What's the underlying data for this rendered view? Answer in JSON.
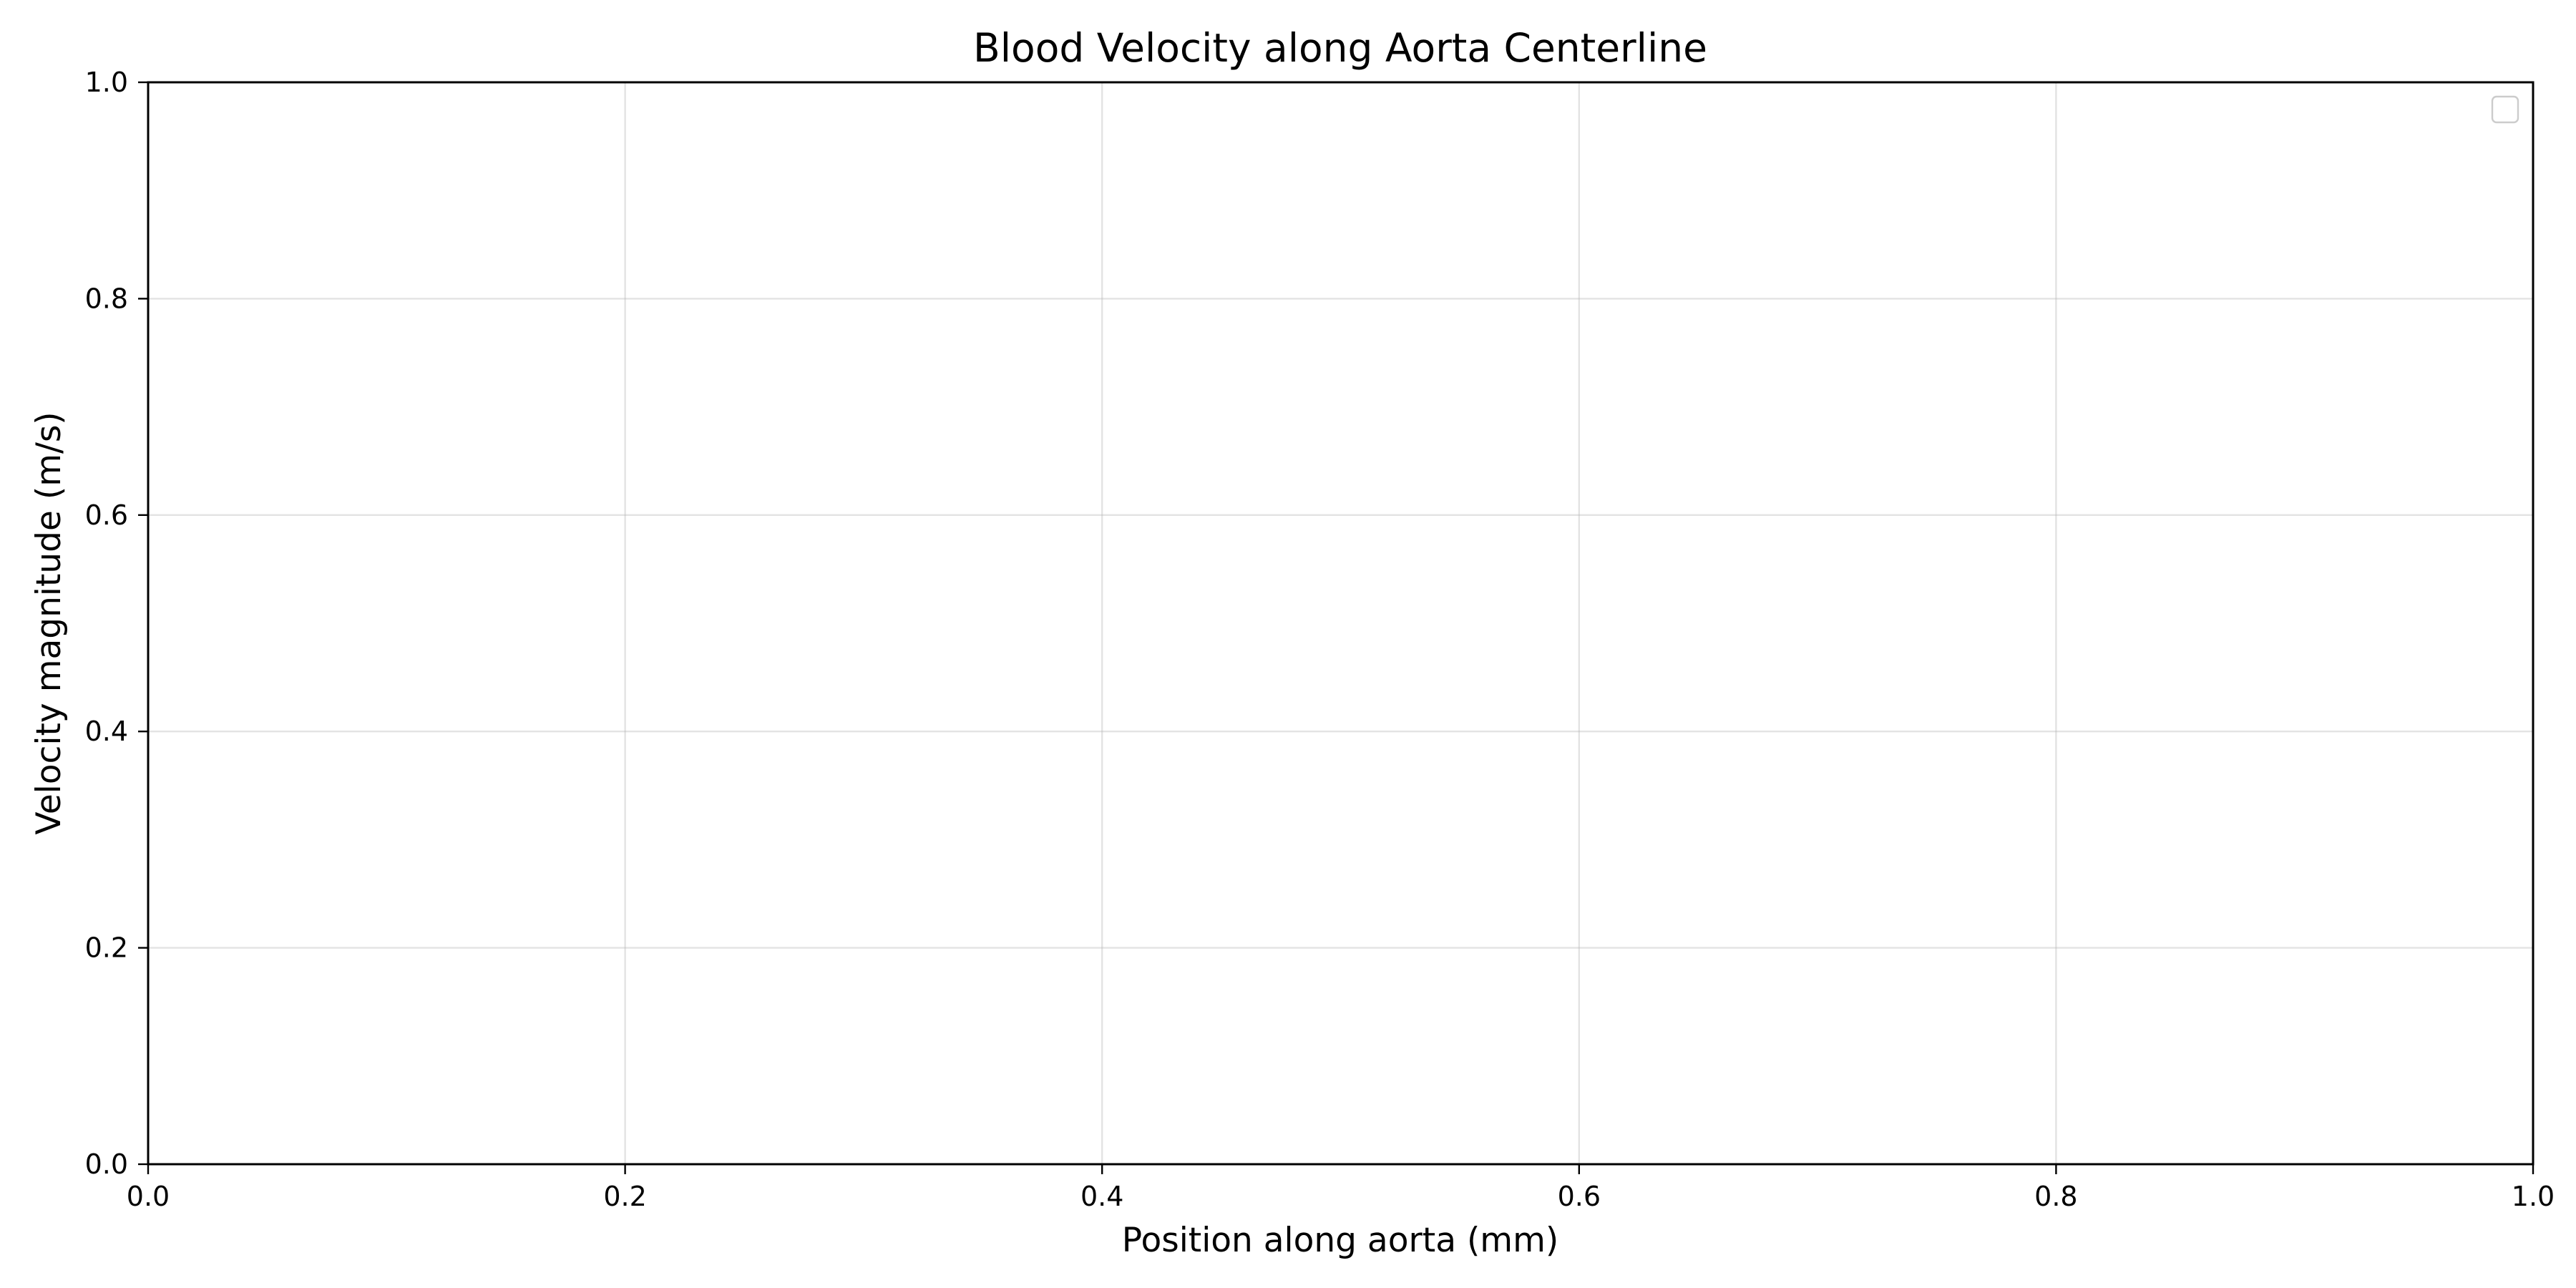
{
  "chart_data": {
    "type": "line",
    "title": "Blood Velocity along Aorta Centerline",
    "xlabel": "Position along aorta (mm)",
    "ylabel": "Velocity magnitude (m/s)",
    "xlim": [
      0.0,
      1.0
    ],
    "ylim": [
      0.0,
      1.0
    ],
    "x_ticks": [
      "0.0",
      "0.2",
      "0.4",
      "0.6",
      "0.8",
      "1.0"
    ],
    "y_ticks": [
      "0.0",
      "0.2",
      "0.4",
      "0.6",
      "0.8",
      "1.0"
    ],
    "series": [],
    "grid": true,
    "legend": {
      "placement": "top-right",
      "entries": []
    }
  }
}
